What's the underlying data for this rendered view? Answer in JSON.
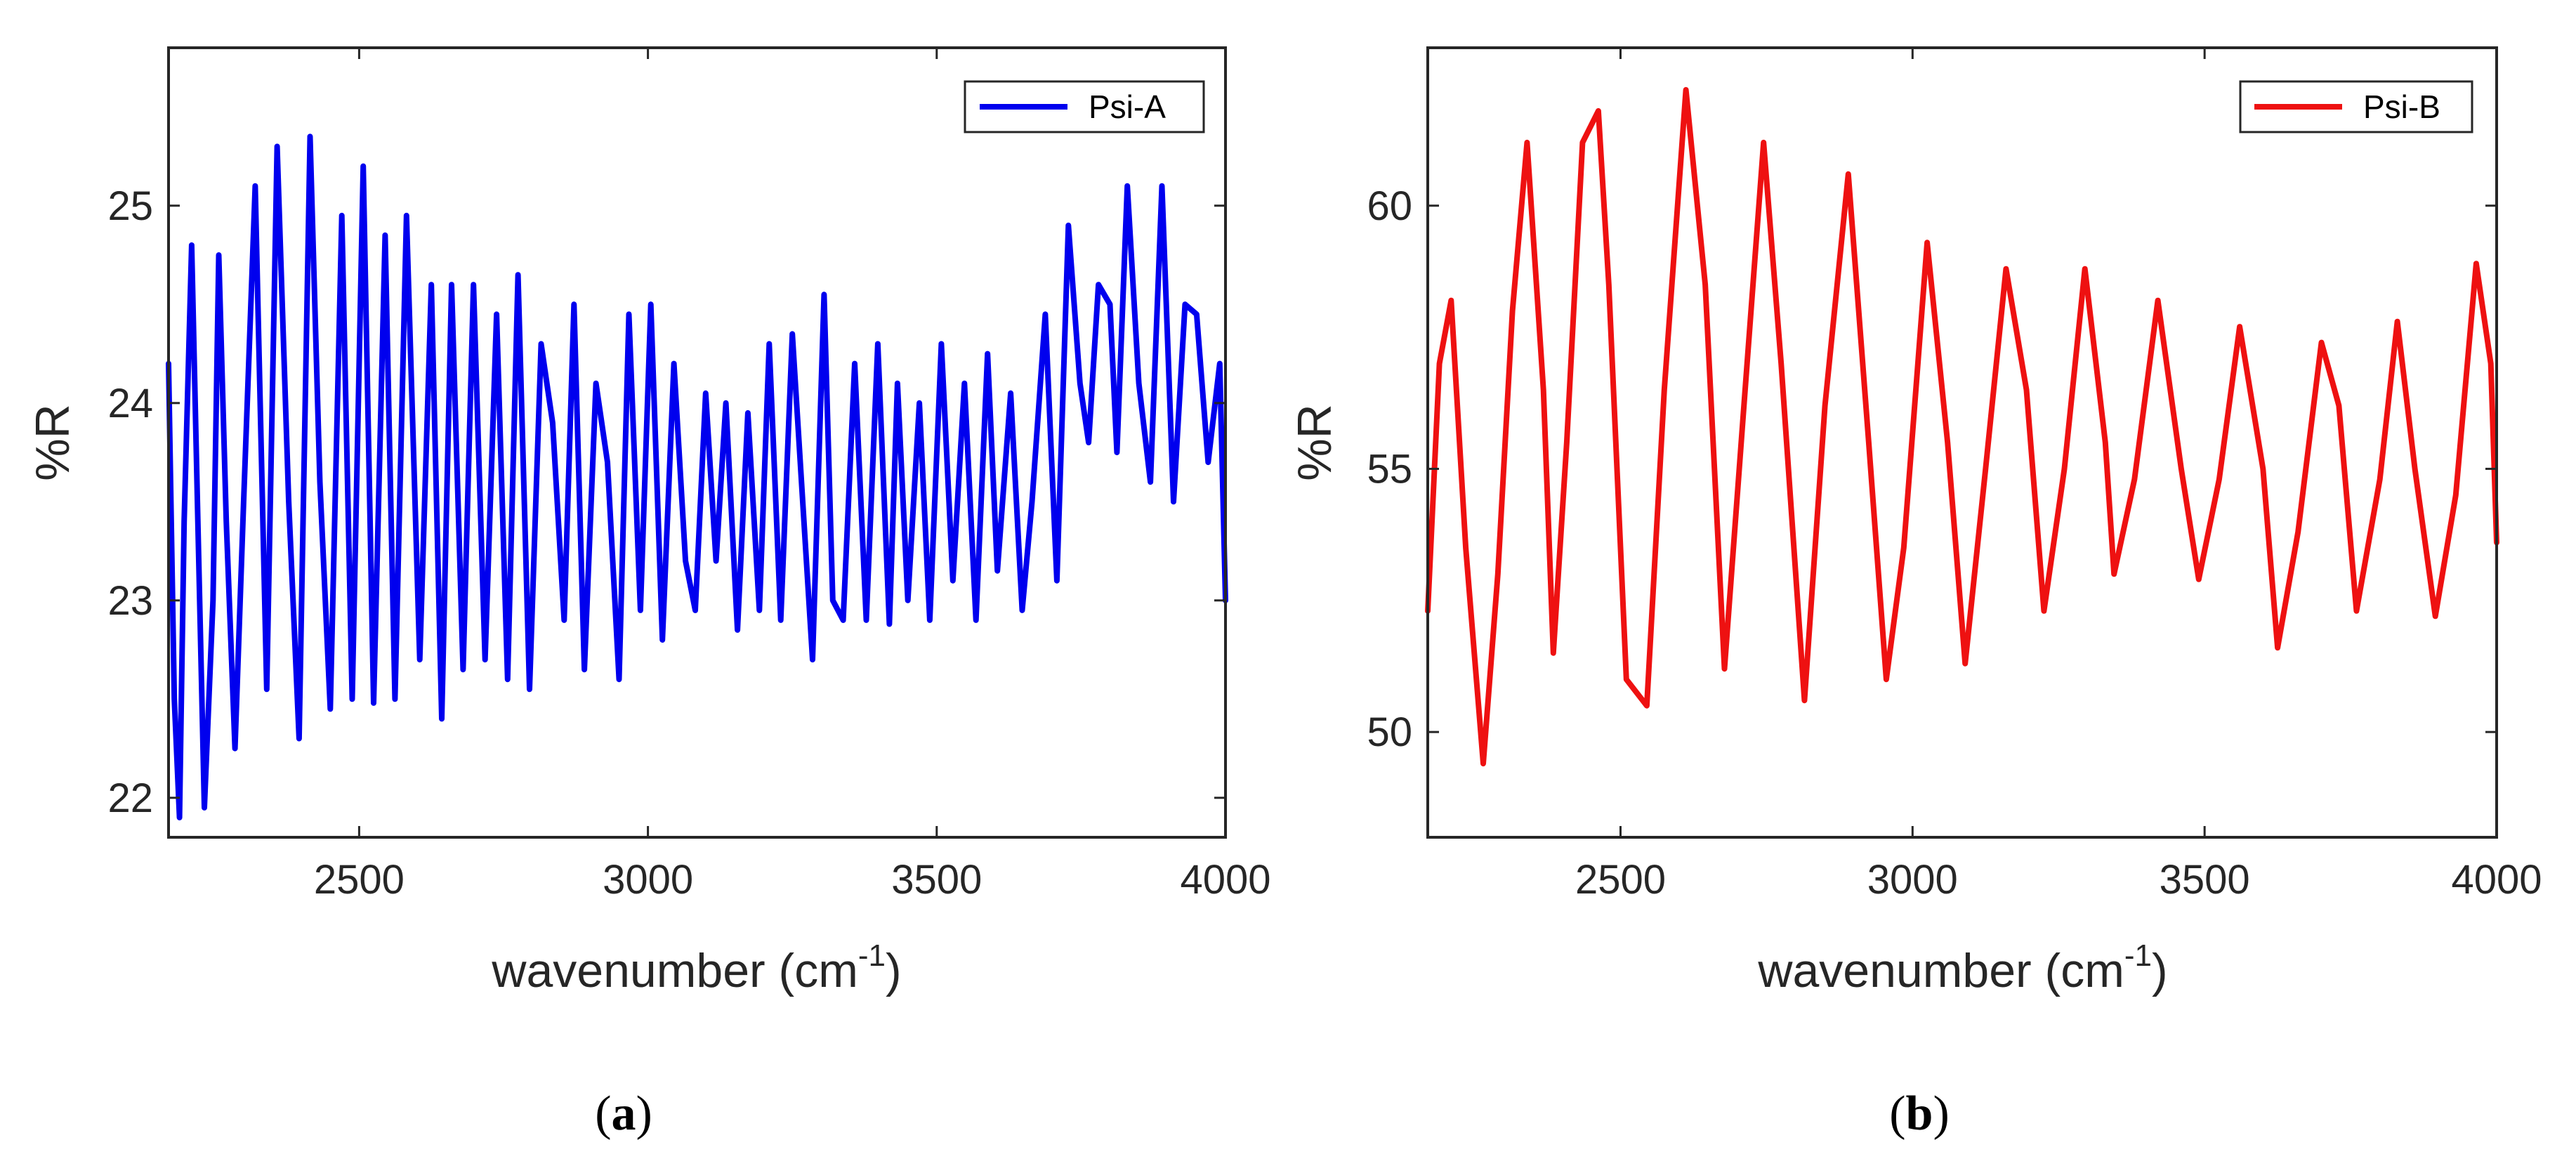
{
  "chart_data": [
    {
      "type": "line",
      "panel_label": "a",
      "xlabel": "wavenumber (cm",
      "xlabel_sup": "-1",
      "xlabel_close": ")",
      "ylabel": "%R",
      "xlim": [
        2170,
        4000
      ],
      "ylim": [
        21.8,
        25.8
      ],
      "xticks": [
        2500,
        3000,
        3500,
        4000
      ],
      "yticks": [
        22,
        23,
        24,
        25
      ],
      "legend_position": "top-right",
      "series": [
        {
          "name": "Psi-A",
          "color": "#0000ee",
          "x": [
            2170,
            2180,
            2189,
            2197,
            2210,
            2220,
            2232,
            2247,
            2257,
            2270,
            2285,
            2300,
            2320,
            2340,
            2358,
            2378,
            2396,
            2415,
            2432,
            2450,
            2470,
            2488,
            2507,
            2525,
            2545,
            2562,
            2582,
            2605,
            2625,
            2643,
            2660,
            2680,
            2698,
            2718,
            2738,
            2757,
            2775,
            2795,
            2815,
            2835,
            2855,
            2872,
            2890,
            2910,
            2930,
            2950,
            2967,
            2987,
            3005,
            3025,
            3045,
            3065,
            3082,
            3100,
            3118,
            3135,
            3155,
            3173,
            3193,
            3210,
            3230,
            3250,
            3268,
            3285,
            3305,
            3320,
            3338,
            3358,
            3378,
            3398,
            3418,
            3432,
            3450,
            3470,
            3488,
            3508,
            3528,
            3548,
            3568,
            3588,
            3605,
            3628,
            3648,
            3665,
            3688,
            3708,
            3728,
            3748,
            3763,
            3780,
            3800,
            3812,
            3830,
            3850,
            3870,
            3890,
            3910,
            3930,
            3950,
            3970,
            3990,
            4000
          ],
          "values": [
            24.2,
            22.5,
            21.9,
            23.4,
            24.8,
            23.5,
            21.95,
            23.0,
            24.75,
            23.4,
            22.25,
            23.5,
            25.1,
            22.55,
            25.3,
            23.5,
            22.3,
            25.35,
            23.6,
            22.45,
            24.95,
            22.5,
            25.2,
            22.48,
            24.85,
            22.5,
            24.95,
            22.7,
            24.6,
            22.4,
            24.6,
            22.65,
            24.6,
            22.7,
            24.45,
            22.6,
            24.65,
            22.55,
            24.3,
            23.9,
            22.9,
            24.5,
            22.65,
            24.1,
            23.7,
            22.6,
            24.45,
            22.95,
            24.5,
            22.8,
            24.2,
            23.2,
            22.95,
            24.05,
            23.2,
            24.0,
            22.85,
            23.95,
            22.95,
            24.3,
            22.9,
            24.35,
            23.5,
            22.7,
            24.55,
            23.0,
            22.9,
            24.2,
            22.9,
            24.3,
            22.88,
            24.1,
            23.0,
            24.0,
            22.9,
            24.3,
            23.1,
            24.1,
            22.9,
            24.25,
            23.15,
            24.05,
            22.95,
            23.5,
            24.45,
            23.1,
            24.9,
            24.1,
            23.8,
            24.6,
            24.5,
            23.75,
            25.1,
            24.1,
            23.6,
            25.1,
            23.5,
            24.5,
            24.45,
            23.7,
            24.2,
            23.0
          ]
        }
      ]
    },
    {
      "type": "line",
      "panel_label": "b",
      "xlabel": "wavenumber (cm",
      "xlabel_sup": "-1",
      "xlabel_close": ")",
      "ylabel": "%R",
      "xlim": [
        2170,
        4000
      ],
      "ylim": [
        48,
        63
      ],
      "xticks": [
        2500,
        3000,
        3500,
        4000
      ],
      "yticks": [
        50,
        55,
        60
      ],
      "legend_position": "top-right",
      "series": [
        {
          "name": "Psi-B",
          "color": "#ee1111",
          "x": [
            2170,
            2190,
            2210,
            2235,
            2265,
            2290,
            2315,
            2340,
            2368,
            2385,
            2408,
            2435,
            2462,
            2480,
            2510,
            2545,
            2575,
            2612,
            2645,
            2678,
            2710,
            2745,
            2775,
            2815,
            2850,
            2890,
            2925,
            2955,
            2985,
            3025,
            3060,
            3090,
            3125,
            3160,
            3195,
            3225,
            3260,
            3295,
            3330,
            3345,
            3380,
            3420,
            3460,
            3490,
            3525,
            3560,
            3600,
            3625,
            3660,
            3700,
            3730,
            3760,
            3800,
            3830,
            3860,
            3895,
            3930,
            3965,
            3990,
            4000
          ],
          "values": [
            52.3,
            57.0,
            58.2,
            53.5,
            49.4,
            53.0,
            58.0,
            61.2,
            56.5,
            51.5,
            55.5,
            61.2,
            61.8,
            58.5,
            51.0,
            50.5,
            56.5,
            62.2,
            58.5,
            51.2,
            56.0,
            61.2,
            57.0,
            50.6,
            56.2,
            60.6,
            55.5,
            51.0,
            53.5,
            59.3,
            55.5,
            51.3,
            55.0,
            58.8,
            56.5,
            52.3,
            55.0,
            58.8,
            55.5,
            53.0,
            54.8,
            58.2,
            55.0,
            52.9,
            54.8,
            57.7,
            55.0,
            51.6,
            53.8,
            57.4,
            56.2,
            52.3,
            54.8,
            57.8,
            55.0,
            52.2,
            54.5,
            58.9,
            57.0,
            53.6
          ]
        }
      ]
    }
  ]
}
